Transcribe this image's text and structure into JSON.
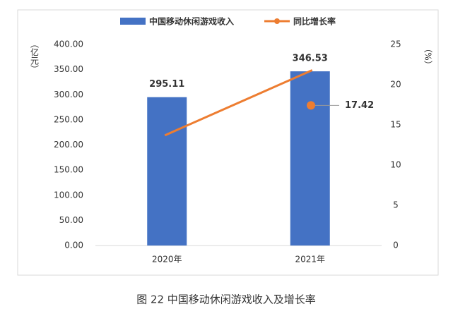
{
  "chart_data": {
    "type": "bar-line",
    "categories": [
      "2020年",
      "2021年"
    ],
    "series": [
      {
        "name": "中国移动休闲游戏收入",
        "color": "#4472c4",
        "values": [
          295.11,
          346.53
        ],
        "value_labels": [
          "295.11",
          "346.53"
        ]
      },
      {
        "name": "同比增长率",
        "color": "#ed7d31",
        "values": [
          13.7,
          21.8
        ],
        "axis": "y2"
      }
    ],
    "point": {
      "value": 17.42,
      "color": "#ed7d31",
      "axis": "y2"
    },
    "ylabel": "（亿元）",
    "y2label": "（%）",
    "ylim": [
      0,
      400
    ],
    "yticks": [
      {
        "value": 0,
        "label": "0.00"
      },
      {
        "value": 50,
        "label": "50.00"
      },
      {
        "value": 100,
        "label": "100.00"
      },
      {
        "value": 150,
        "label": "150.00"
      },
      {
        "value": 200,
        "label": "200.00"
      },
      {
        "value": 250,
        "label": "250.00"
      },
      {
        "value": 300,
        "label": "300.00"
      },
      {
        "value": 350,
        "label": "350.00"
      },
      {
        "value": 400,
        "label": "400.00"
      }
    ],
    "y2lim": [
      0,
      25
    ],
    "y2ticks": [
      0,
      5,
      10,
      15,
      20,
      25
    ],
    "caption": "图 22 中国移动休闲游戏收入及增长率"
  }
}
